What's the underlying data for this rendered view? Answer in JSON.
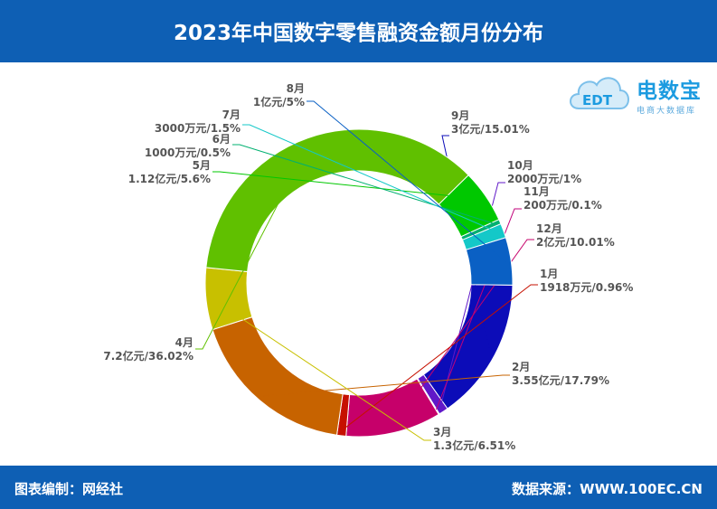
{
  "header": {
    "title": "2023年中国数字零售融资金额月份分布"
  },
  "footer": {
    "source_left": "图表编制：网经社",
    "source_right": "数据来源：WWW.100EC.CN"
  },
  "brand": {
    "name": "电数宝",
    "subtitle": "电商大数据库",
    "logo_text": "EDT"
  },
  "colors": {
    "header_bg": "#0e5fb4",
    "label_text": "#555555"
  },
  "chart_data": {
    "type": "donut",
    "title": "2023年中国数字零售融资金额月份分布",
    "slices": [
      {
        "month": "9月",
        "amount": "3亿元",
        "percent": 15.01,
        "pct_label": "15.01%",
        "color": "#0c0cb8"
      },
      {
        "month": "10月",
        "amount": "2000万元",
        "percent": 1,
        "pct_label": "1%",
        "color": "#6018c8"
      },
      {
        "month": "11月",
        "amount": "200万元",
        "percent": 0.1,
        "pct_label": "0.1%",
        "color": "#c0007a"
      },
      {
        "month": "12月",
        "amount": "2亿元",
        "percent": 10.01,
        "pct_label": "10.01%",
        "color": "#c6006a"
      },
      {
        "month": "1月",
        "amount": "1918万元",
        "percent": 0.96,
        "pct_label": "0.96%",
        "color": "#c61000"
      },
      {
        "month": "2月",
        "amount": "3.55亿元",
        "percent": 17.79,
        "pct_label": "17.79%",
        "color": "#c76300"
      },
      {
        "month": "3月",
        "amount": "1.3亿元",
        "percent": 6.51,
        "pct_label": "6.51%",
        "color": "#c8c000"
      },
      {
        "month": "4月",
        "amount": "7.2亿元",
        "percent": 36.02,
        "pct_label": "36.02%",
        "color": "#60c000"
      },
      {
        "month": "5月",
        "amount": "1.12亿元",
        "percent": 5.6,
        "pct_label": "5.6%",
        "color": "#00c800"
      },
      {
        "month": "6月",
        "amount": "1000万元",
        "percent": 0.5,
        "pct_label": "0.5%",
        "color": "#00b070"
      },
      {
        "month": "7月",
        "amount": "3000万元",
        "percent": 1.5,
        "pct_label": "1.5%",
        "color": "#14c8c8"
      },
      {
        "month": "8月",
        "amount": "1亿元",
        "percent": 5,
        "pct_label": "5%",
        "color": "#0a60c4"
      }
    ]
  }
}
